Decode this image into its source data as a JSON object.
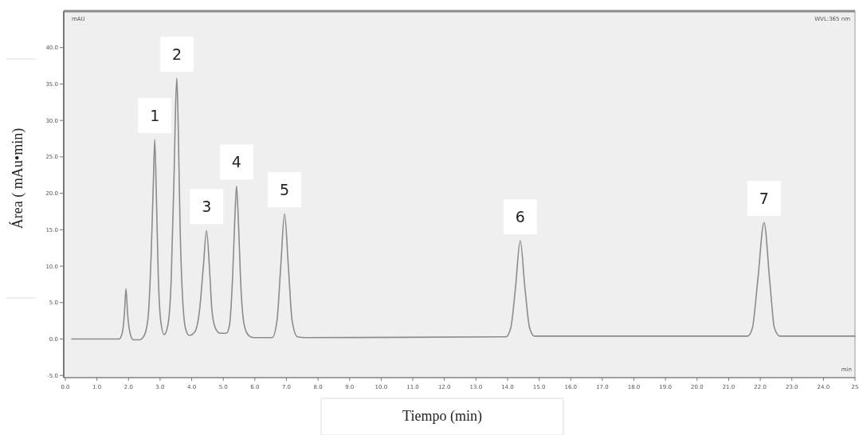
{
  "chart_data": {
    "type": "line",
    "xlabel": "Tiempo (min)",
    "ylabel": "Área ( mAu•min)",
    "xlim": [
      0,
      25
    ],
    "ylim": [
      -5.3,
      45
    ],
    "xticks": [
      {
        "value": 0,
        "label": "0.0"
      },
      {
        "value": 1,
        "label": "1.0"
      },
      {
        "value": 2,
        "label": "2.0"
      },
      {
        "value": 3,
        "label": "3.0"
      },
      {
        "value": 4,
        "label": "4.0"
      },
      {
        "value": 5,
        "label": "5.0"
      },
      {
        "value": 6,
        "label": "6.0"
      },
      {
        "value": 7,
        "label": "7.0"
      },
      {
        "value": 8,
        "label": "8.0"
      },
      {
        "value": 9,
        "label": "9.0"
      },
      {
        "value": 10,
        "label": "10.0"
      },
      {
        "value": 11,
        "label": "11.0"
      },
      {
        "value": 12,
        "label": "12.0"
      },
      {
        "value": 13,
        "label": "13.0"
      },
      {
        "value": 14,
        "label": "14.0"
      },
      {
        "value": 15,
        "label": "15.0"
      },
      {
        "value": 16,
        "label": "16.0"
      },
      {
        "value": 17,
        "label": "17.0"
      },
      {
        "value": 18,
        "label": "18.0"
      },
      {
        "value": 19,
        "label": "19.0"
      },
      {
        "value": 20,
        "label": "20.0"
      },
      {
        "value": 21,
        "label": "21.0"
      },
      {
        "value": 22,
        "label": "22.0"
      },
      {
        "value": 23,
        "label": "23.0"
      },
      {
        "value": 24,
        "label": "24.0"
      },
      {
        "value": 25,
        "label": "25"
      }
    ],
    "yticks": [
      {
        "value": -5,
        "label": "-5.0"
      },
      {
        "value": 0,
        "label": "0.0"
      },
      {
        "value": 5,
        "label": "5.0"
      },
      {
        "value": 10,
        "label": "10.0"
      },
      {
        "value": 15,
        "label": "15.0"
      },
      {
        "value": 20,
        "label": "20.0"
      },
      {
        "value": 25,
        "label": "25.0"
      },
      {
        "value": 30,
        "label": "30.0"
      },
      {
        "value": 35,
        "label": "35.0"
      },
      {
        "value": 40,
        "label": "40.0"
      }
    ],
    "grid": false,
    "marker": "none",
    "line_style": "solid",
    "series": [
      {
        "color": "#8c8c8c",
        "x": [
          0.2,
          1.7,
          1.8,
          1.87,
          1.92,
          1.97,
          2.05,
          2.15,
          2.35,
          2.5,
          2.62,
          2.72,
          2.79,
          2.83,
          2.88,
          2.94,
          3.02,
          3.13,
          3.25,
          3.35,
          3.44,
          3.49,
          3.53,
          3.57,
          3.63,
          3.72,
          3.82,
          3.92,
          4.1,
          4.25,
          4.37,
          4.47,
          4.56,
          4.64,
          4.75,
          4.9,
          5.1,
          5.2,
          5.3,
          5.37,
          5.42,
          5.48,
          5.56,
          5.66,
          5.8,
          5.95,
          6.55,
          6.7,
          6.82,
          6.94,
          7.06,
          7.18,
          7.35,
          7.6,
          13.95,
          14.1,
          14.25,
          14.4,
          14.55,
          14.7,
          14.85,
          21.6,
          21.75,
          21.92,
          22.12,
          22.3,
          22.45,
          22.62,
          25
        ],
        "values": [
          0,
          0,
          0.8,
          3.5,
          6.9,
          3.5,
          0.8,
          -0.1,
          -0.1,
          0.5,
          3,
          12,
          22,
          27.4,
          20,
          9,
          2.5,
          0.6,
          2,
          8,
          22,
          32,
          35.8,
          30,
          16,
          5,
          1.2,
          0.5,
          1,
          4,
          10,
          14.9,
          10,
          4,
          1.5,
          0.8,
          0.8,
          2,
          9,
          17,
          21,
          16,
          7,
          2,
          0.5,
          0.2,
          0.2,
          2.5,
          10,
          17.2,
          10,
          2.5,
          0.3,
          0.2,
          0.3,
          1.5,
          7,
          13.5,
          7,
          1.5,
          0.4,
          0.4,
          1.5,
          8,
          16,
          8,
          1.5,
          0.4,
          0.4
        ]
      }
    ],
    "annotations": [
      {
        "text": "1",
        "x": 2.83,
        "y": 27.4
      },
      {
        "text": "2",
        "x": 3.53,
        "y": 35.8
      },
      {
        "text": "3",
        "x": 4.47,
        "y": 14.9
      },
      {
        "text": "4",
        "x": 5.42,
        "y": 21
      },
      {
        "text": "5",
        "x": 6.94,
        "y": 17.2
      },
      {
        "text": "6",
        "x": 14.4,
        "y": 13.5
      },
      {
        "text": "7",
        "x": 22.12,
        "y": 16
      },
      "mAU",
      "WVL:365 nm",
      "min"
    ]
  }
}
